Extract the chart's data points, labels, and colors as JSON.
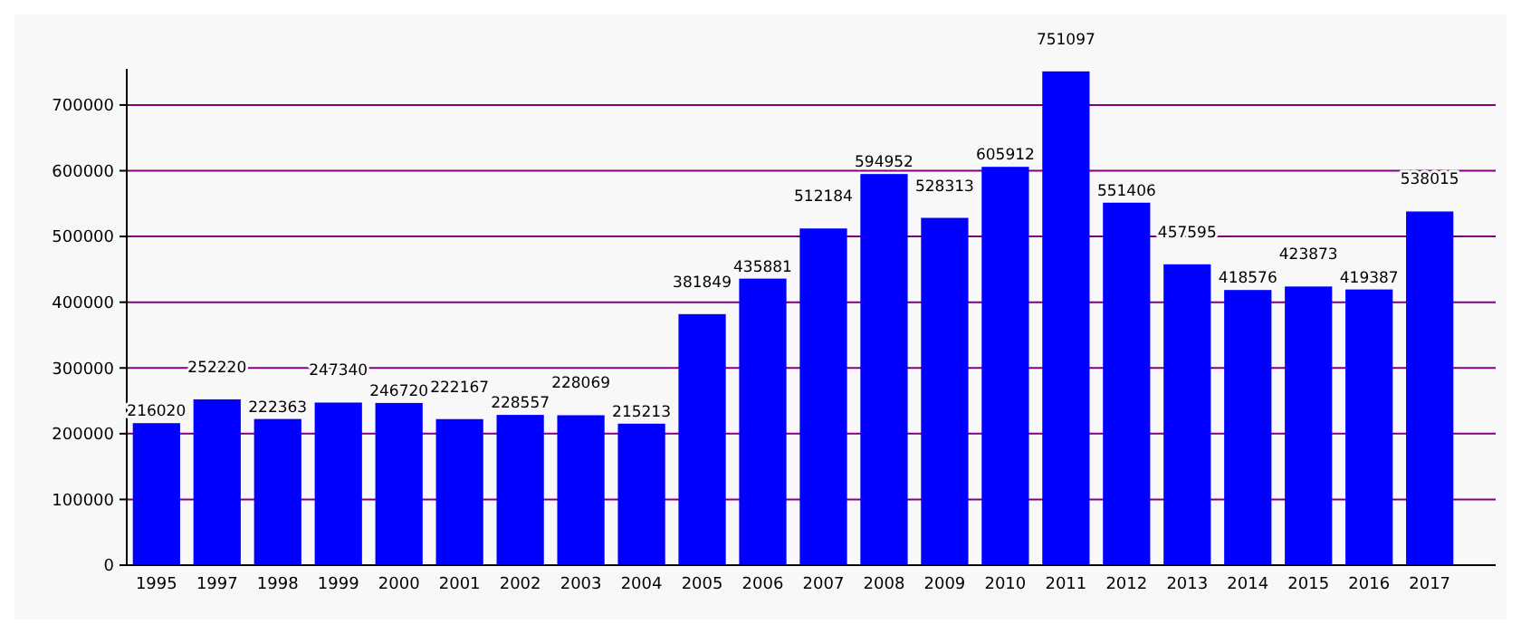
{
  "chart_data": {
    "type": "bar",
    "categories": [
      "1995",
      "1997",
      "1998",
      "1999",
      "2000",
      "2001",
      "2002",
      "2003",
      "2004",
      "2005",
      "2006",
      "2007",
      "2008",
      "2009",
      "2010",
      "2011",
      "2012",
      "2013",
      "2014",
      "2015",
      "2016",
      "2017"
    ],
    "values": [
      216020,
      252220,
      222363,
      247340,
      246720,
      222167,
      228557,
      228069,
      215213,
      381849,
      435881,
      512184,
      594952,
      528313,
      605912,
      751097,
      551406,
      457595,
      418576,
      423873,
      419387,
      538015
    ],
    "color": "#0000ff",
    "ylim": [
      0,
      755000
    ],
    "yticks": [
      0,
      100000,
      200000,
      300000,
      400000,
      500000,
      600000,
      700000
    ],
    "grid": "y",
    "data_labels": true
  }
}
